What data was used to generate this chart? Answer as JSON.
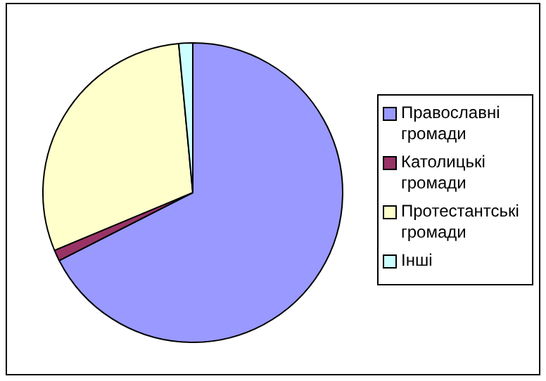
{
  "chart_data": {
    "type": "pie",
    "categories": [
      "Православні громади",
      "Католицькі громади",
      "Протестантські громади",
      "Інші"
    ],
    "values": [
      67.5,
      1.2,
      29.8,
      1.5
    ],
    "colors": [
      "#9999ff",
      "#993366",
      "#ffffcc",
      "#ccffff"
    ],
    "legend": "right"
  }
}
